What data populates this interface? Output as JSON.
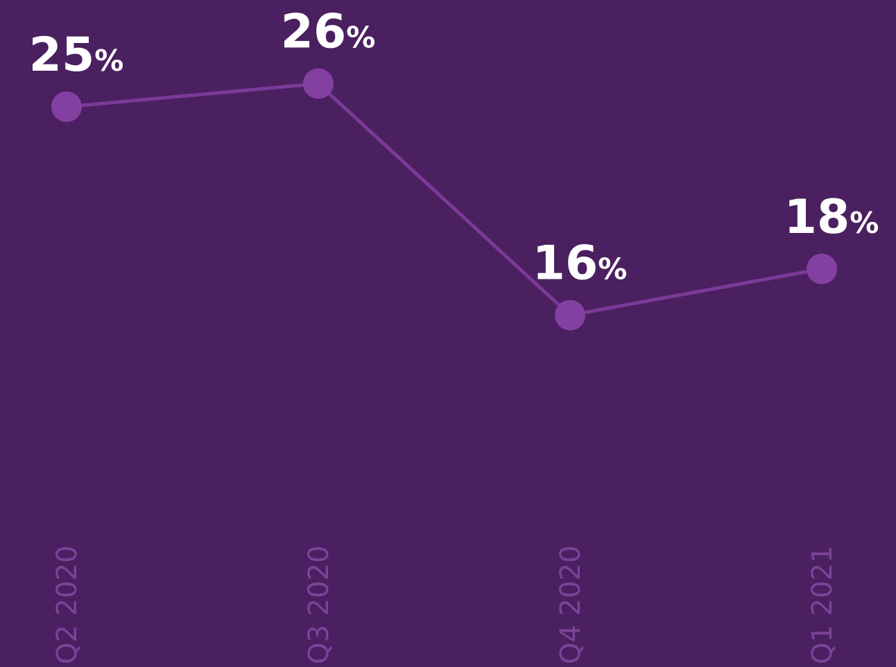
{
  "chart_data": {
    "type": "line",
    "categories": [
      "Q2 2020",
      "Q3 2020",
      "Q4 2020",
      "Q1 2021"
    ],
    "series": [
      {
        "color": "#7b3a98",
        "marker_color": "#8440a0",
        "values": [
          25,
          26,
          16,
          18
        ],
        "value_labels": [
          "25%",
          "26%",
          "16%",
          "18%"
        ]
      }
    ],
    "ylim": [
      0,
      30
    ],
    "background": "#4a2060"
  }
}
